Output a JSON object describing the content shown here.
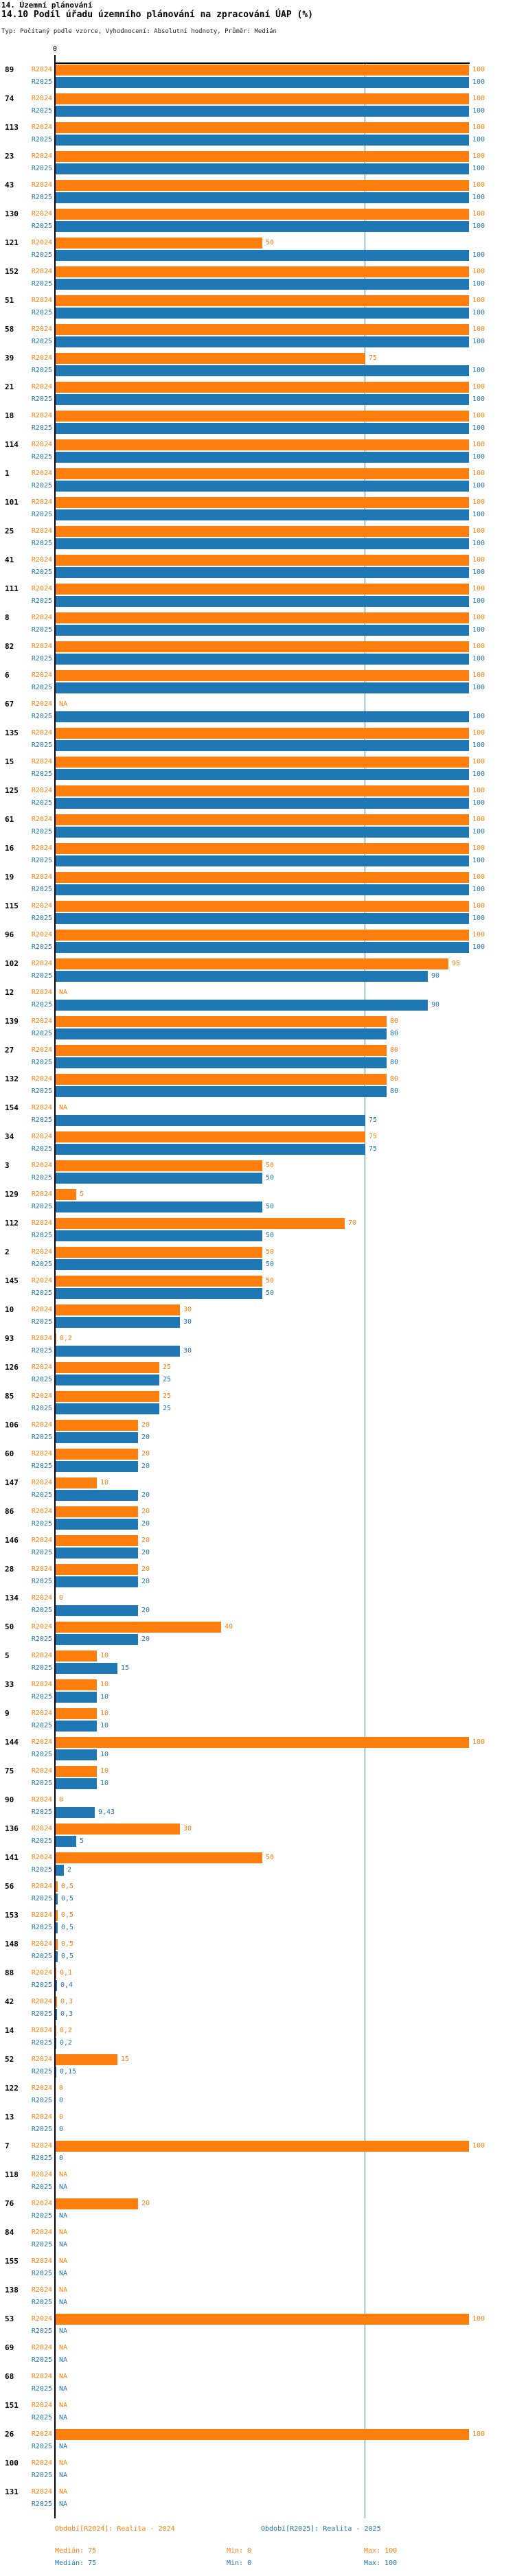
{
  "header": {
    "title1": "14. Územní plánování",
    "title2": "14.10 Podíl úřadu územního plánování na zpracování ÚAP (%)",
    "meta": "Typ: Počítaný podle vzorce, Vyhodnocení: Absolutní hodnoty, Průměr: Medián"
  },
  "chart_data": {
    "type": "bar",
    "orientation": "horizontal",
    "xlim": [
      0,
      100
    ],
    "axis": {
      "zero_label": "0",
      "median_reference": 75
    },
    "series": [
      {
        "name": "R2024",
        "color": "#ff7f0e"
      },
      {
        "name": "R2025",
        "color": "#1f77b4"
      }
    ],
    "rows": [
      {
        "id": "89",
        "r2024": "100",
        "r2025": "100"
      },
      {
        "id": "74",
        "r2024": "100",
        "r2025": "100"
      },
      {
        "id": "113",
        "r2024": "100",
        "r2025": "100"
      },
      {
        "id": "23",
        "r2024": "100",
        "r2025": "100"
      },
      {
        "id": "43",
        "r2024": "100",
        "r2025": "100"
      },
      {
        "id": "130",
        "r2024": "100",
        "r2025": "100"
      },
      {
        "id": "121",
        "r2024": "50",
        "r2025": "100"
      },
      {
        "id": "152",
        "r2024": "100",
        "r2025": "100"
      },
      {
        "id": "51",
        "r2024": "100",
        "r2025": "100"
      },
      {
        "id": "58",
        "r2024": "100",
        "r2025": "100"
      },
      {
        "id": "39",
        "r2024": "75",
        "r2025": "100"
      },
      {
        "id": "21",
        "r2024": "100",
        "r2025": "100"
      },
      {
        "id": "18",
        "r2024": "100",
        "r2025": "100"
      },
      {
        "id": "114",
        "r2024": "100",
        "r2025": "100"
      },
      {
        "id": "1",
        "r2024": "100",
        "r2025": "100"
      },
      {
        "id": "101",
        "r2024": "100",
        "r2025": "100"
      },
      {
        "id": "25",
        "r2024": "100",
        "r2025": "100"
      },
      {
        "id": "41",
        "r2024": "100",
        "r2025": "100"
      },
      {
        "id": "111",
        "r2024": "100",
        "r2025": "100"
      },
      {
        "id": "8",
        "r2024": "100",
        "r2025": "100"
      },
      {
        "id": "82",
        "r2024": "100",
        "r2025": "100"
      },
      {
        "id": "6",
        "r2024": "100",
        "r2025": "100"
      },
      {
        "id": "67",
        "r2024": "NA",
        "r2025": "100"
      },
      {
        "id": "135",
        "r2024": "100",
        "r2025": "100"
      },
      {
        "id": "15",
        "r2024": "100",
        "r2025": "100"
      },
      {
        "id": "125",
        "r2024": "100",
        "r2025": "100"
      },
      {
        "id": "61",
        "r2024": "100",
        "r2025": "100"
      },
      {
        "id": "16",
        "r2024": "100",
        "r2025": "100"
      },
      {
        "id": "19",
        "r2024": "100",
        "r2025": "100"
      },
      {
        "id": "115",
        "r2024": "100",
        "r2025": "100"
      },
      {
        "id": "96",
        "r2024": "100",
        "r2025": "100"
      },
      {
        "id": "102",
        "r2024": "95",
        "r2025": "90"
      },
      {
        "id": "12",
        "r2024": "NA",
        "r2025": "90"
      },
      {
        "id": "139",
        "r2024": "80",
        "r2025": "80"
      },
      {
        "id": "27",
        "r2024": "80",
        "r2025": "80"
      },
      {
        "id": "132",
        "r2024": "80",
        "r2025": "80"
      },
      {
        "id": "154",
        "r2024": "NA",
        "r2025": "75"
      },
      {
        "id": "34",
        "r2024": "75",
        "r2025": "75"
      },
      {
        "id": "3",
        "r2024": "50",
        "r2025": "50"
      },
      {
        "id": "129",
        "r2024": "5",
        "r2025": "50"
      },
      {
        "id": "112",
        "r2024": "70",
        "r2025": "50"
      },
      {
        "id": "2",
        "r2024": "50",
        "r2025": "50"
      },
      {
        "id": "145",
        "r2024": "50",
        "r2025": "50"
      },
      {
        "id": "10",
        "r2024": "30",
        "r2025": "30"
      },
      {
        "id": "93",
        "r2024": "0,2",
        "r2025": "30"
      },
      {
        "id": "126",
        "r2024": "25",
        "r2025": "25"
      },
      {
        "id": "85",
        "r2024": "25",
        "r2025": "25"
      },
      {
        "id": "106",
        "r2024": "20",
        "r2025": "20"
      },
      {
        "id": "60",
        "r2024": "20",
        "r2025": "20"
      },
      {
        "id": "147",
        "r2024": "10",
        "r2025": "20"
      },
      {
        "id": "86",
        "r2024": "20",
        "r2025": "20"
      },
      {
        "id": "146",
        "r2024": "20",
        "r2025": "20"
      },
      {
        "id": "28",
        "r2024": "20",
        "r2025": "20"
      },
      {
        "id": "134",
        "r2024": "0",
        "r2025": "20"
      },
      {
        "id": "50",
        "r2024": "40",
        "r2025": "20"
      },
      {
        "id": "5",
        "r2024": "10",
        "r2025": "15"
      },
      {
        "id": "33",
        "r2024": "10",
        "r2025": "10"
      },
      {
        "id": "9",
        "r2024": "10",
        "r2025": "10"
      },
      {
        "id": "144",
        "r2024": "100",
        "r2025": "10"
      },
      {
        "id": "75",
        "r2024": "10",
        "r2025": "10"
      },
      {
        "id": "90",
        "r2024": "0",
        "r2025": "9,43"
      },
      {
        "id": "136",
        "r2024": "30",
        "r2025": "5"
      },
      {
        "id": "141",
        "r2024": "50",
        "r2025": "2"
      },
      {
        "id": "56",
        "r2024": "0,5",
        "r2025": "0,5"
      },
      {
        "id": "153",
        "r2024": "0,5",
        "r2025": "0,5"
      },
      {
        "id": "148",
        "r2024": "0,5",
        "r2025": "0,5"
      },
      {
        "id": "88",
        "r2024": "0,1",
        "r2025": "0,4"
      },
      {
        "id": "42",
        "r2024": "0,3",
        "r2025": "0,3"
      },
      {
        "id": "14",
        "r2024": "0,2",
        "r2025": "0,2"
      },
      {
        "id": "52",
        "r2024": "15",
        "r2025": "0,15"
      },
      {
        "id": "122",
        "r2024": "0",
        "r2025": "0"
      },
      {
        "id": "13",
        "r2024": "0",
        "r2025": "0"
      },
      {
        "id": "7",
        "r2024": "100",
        "r2025": "0"
      },
      {
        "id": "118",
        "r2024": "NA",
        "r2025": "NA"
      },
      {
        "id": "76",
        "r2024": "20",
        "r2025": "NA"
      },
      {
        "id": "84",
        "r2024": "NA",
        "r2025": "NA"
      },
      {
        "id": "155",
        "r2024": "NA",
        "r2025": "NA"
      },
      {
        "id": "138",
        "r2024": "NA",
        "r2025": "NA"
      },
      {
        "id": "53",
        "r2024": "100",
        "r2025": "NA"
      },
      {
        "id": "69",
        "r2024": "NA",
        "r2025": "NA"
      },
      {
        "id": "68",
        "r2024": "NA",
        "r2025": "NA"
      },
      {
        "id": "151",
        "r2024": "NA",
        "r2025": "NA"
      },
      {
        "id": "26",
        "r2024": "100",
        "r2025": "NA"
      },
      {
        "id": "100",
        "r2024": "NA",
        "r2025": "NA"
      },
      {
        "id": "131",
        "r2024": "NA",
        "r2025": "NA"
      }
    ]
  },
  "legend": {
    "series1": "Období[R2024]: Realita - 2024",
    "series2": "Období[R2025]: Realita - 2025",
    "median_2024": "Medián: 75",
    "min_2024": "Min: 0",
    "max_2024": "Max: 100",
    "median_2025": "Medián: 75",
    "min_2025": "Min: 0",
    "max_2025": "Max: 100"
  }
}
